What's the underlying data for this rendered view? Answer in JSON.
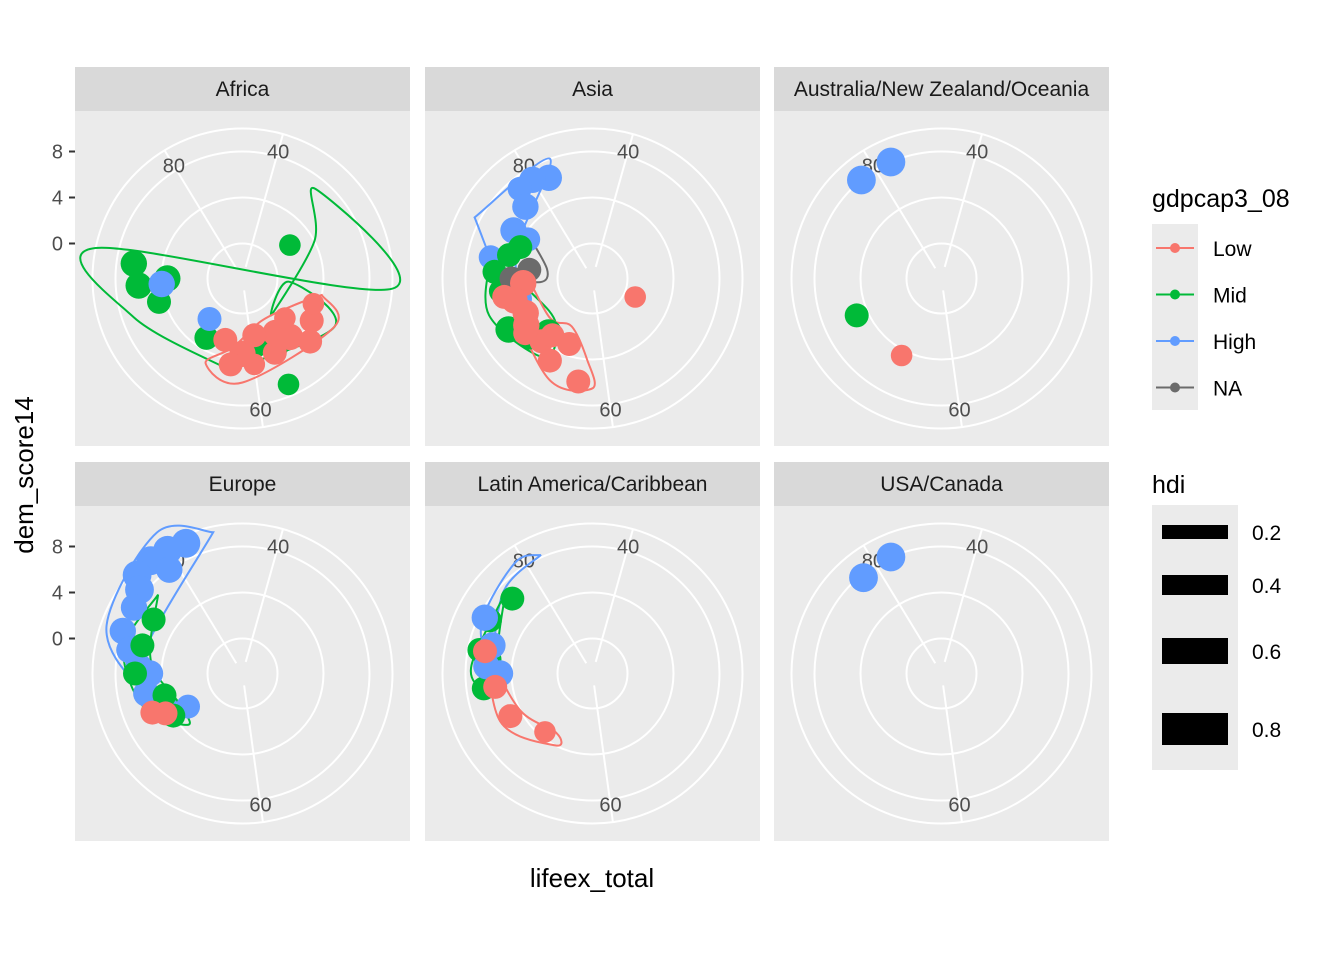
{
  "chart_data": {
    "type": "scatter",
    "coord": "polar",
    "xlabel": "lifeex_total",
    "ylabel": "dem_score14",
    "theta_ticks": [
      40,
      60,
      80
    ],
    "theta_domain": [
      38,
      84
    ],
    "r_ticks": [
      0,
      4,
      8
    ],
    "r_domain": [
      -2,
      10
    ],
    "colors": {
      "Low": "#F8766D",
      "Mid": "#00BA38",
      "High": "#619CFF",
      "NA": "#6b6b6b"
    },
    "legend_color": {
      "title": "gdpcap3_08",
      "items": [
        "Low",
        "Mid",
        "High",
        "NA"
      ]
    },
    "legend_size": {
      "title": "hdi",
      "items": [
        "0.2",
        "0.4",
        "0.6",
        "0.8"
      ]
    },
    "facets": [
      {
        "label": "Africa",
        "points": [
          {
            "x": 58.0,
            "y": 7.0,
            "g": "Mid",
            "s": 0.4
          },
          {
            "x": 57.5,
            "y": 3.5,
            "g": "Mid",
            "s": 0.5
          },
          {
            "x": 59.5,
            "y": 3.0,
            "g": "Mid",
            "s": 0.4
          },
          {
            "x": 65.0,
            "y": 3.0,
            "g": "Mid",
            "s": 0.5
          },
          {
            "x": 70.5,
            "y": 4.5,
            "g": "Mid",
            "s": 0.5
          },
          {
            "x": 72.0,
            "y": 6.0,
            "g": "Mid",
            "s": 0.6
          },
          {
            "x": 73.5,
            "y": 6.5,
            "g": "Mid",
            "s": 0.6
          },
          {
            "x": 72.5,
            "y": 3.5,
            "g": "Mid",
            "s": 0.6
          },
          {
            "x": 72.0,
            "y": 4.0,
            "g": "High",
            "s": 0.6
          },
          {
            "x": 66.0,
            "y": 1.5,
            "g": "High",
            "s": 0.5
          },
          {
            "x": 45.0,
            "y": 2.0,
            "g": "Mid",
            "s": 0.4
          },
          {
            "x": 55.0,
            "y": 5.0,
            "g": "Low",
            "s": 0.5
          },
          {
            "x": 58.0,
            "y": 4.0,
            "g": "Low",
            "s": 0.5
          },
          {
            "x": 60.0,
            "y": 4.5,
            "g": "Low",
            "s": 0.4
          },
          {
            "x": 53.5,
            "y": 4.0,
            "g": "Low",
            "s": 0.5
          },
          {
            "x": 57.0,
            "y": 2.5,
            "g": "Low",
            "s": 0.6
          },
          {
            "x": 61.0,
            "y": 3.5,
            "g": "Low",
            "s": 0.6
          },
          {
            "x": 62.0,
            "y": 4.5,
            "g": "Low",
            "s": 0.5
          },
          {
            "x": 56.0,
            "y": 3.5,
            "g": "Low",
            "s": 0.6
          },
          {
            "x": 63.0,
            "y": 2.5,
            "g": "Low",
            "s": 0.5
          },
          {
            "x": 59.5,
            "y": 2.0,
            "g": "Low",
            "s": 0.5
          },
          {
            "x": 52.0,
            "y": 3.5,
            "g": "Low",
            "s": 0.4
          },
          {
            "x": 55.0,
            "y": 2.0,
            "g": "Low",
            "s": 0.4
          }
        ],
        "contours": [
          {
            "g": "Mid",
            "pts": [
              [
                62,
                5
              ],
              [
                70,
                7
              ],
              [
                74,
                10
              ],
              [
                50,
                10
              ],
              [
                43,
                7
              ],
              [
                46,
                4
              ],
              [
                56,
                1
              ],
              [
                50,
                1
              ],
              [
                53,
                6
              ],
              [
                62,
                5
              ]
            ]
          },
          {
            "g": "Low",
            "pts": [
              [
                51,
                4
              ],
              [
                53,
                6
              ],
              [
                61,
                6
              ],
              [
                64,
                5
              ],
              [
                62,
                3
              ],
              [
                58,
                1
              ],
              [
                53,
                2
              ],
              [
                51,
                4
              ]
            ]
          }
        ]
      },
      {
        "label": "Asia",
        "points": [
          {
            "x": 81.0,
            "y": 6.5,
            "g": "High",
            "s": 0.6
          },
          {
            "x": 80.0,
            "y": 7.0,
            "g": "High",
            "s": 0.6
          },
          {
            "x": 79.0,
            "y": 7.0,
            "g": "High",
            "s": 0.5
          },
          {
            "x": 78.5,
            "y": 5.5,
            "g": "High",
            "s": 0.6
          },
          {
            "x": 76.5,
            "y": 5.0,
            "g": "High",
            "s": 0.6
          },
          {
            "x": 74.0,
            "y": 6.0,
            "g": "High",
            "s": 0.5
          },
          {
            "x": 70.5,
            "y": 3.5,
            "g": "High",
            "s": 0.5
          },
          {
            "x": 76.5,
            "y": 3.5,
            "g": "High",
            "s": 0.5
          },
          {
            "x": 75.5,
            "y": 3.8,
            "g": "Mid",
            "s": 0.5
          },
          {
            "x": 74.5,
            "y": 4.5,
            "g": "Mid",
            "s": 0.5
          },
          {
            "x": 73.0,
            "y": 5.5,
            "g": "Mid",
            "s": 0.5
          },
          {
            "x": 71.5,
            "y": 5.0,
            "g": "Mid",
            "s": 0.5
          },
          {
            "x": 68.5,
            "y": 5.5,
            "g": "Mid",
            "s": 0.6
          },
          {
            "x": 67.0,
            "y": 4.5,
            "g": "Mid",
            "s": 0.5
          },
          {
            "x": 66.0,
            "y": 3.0,
            "g": "Mid",
            "s": 0.6
          },
          {
            "x": 72.5,
            "y": 4.0,
            "g": "NA",
            "s": 0.5
          },
          {
            "x": 73.5,
            "y": 2.5,
            "g": "NA",
            "s": 0.5
          },
          {
            "x": 72.0,
            "y": 3.0,
            "g": "Low",
            "s": 0.6
          },
          {
            "x": 70.5,
            "y": 4.0,
            "g": "Low",
            "s": 0.6
          },
          {
            "x": 68.0,
            "y": 4.0,
            "g": "Low",
            "s": 0.6
          },
          {
            "x": 69.0,
            "y": 3.5,
            "g": "Low",
            "s": 0.6
          },
          {
            "x": 66.0,
            "y": 4.0,
            "g": "Low",
            "s": 0.5
          },
          {
            "x": 65.5,
            "y": 3.0,
            "g": "Low",
            "s": 0.5
          },
          {
            "x": 64.5,
            "y": 5.0,
            "g": "Low",
            "s": 0.5
          },
          {
            "x": 62.0,
            "y": 6.0,
            "g": "Low",
            "s": 0.5
          },
          {
            "x": 67.5,
            "y": 4.5,
            "g": "Low",
            "s": 0.5
          },
          {
            "x": 63.5,
            "y": 3.0,
            "g": "Low",
            "s": 0.5
          },
          {
            "x": 52.5,
            "y": 1.0,
            "g": "Low",
            "s": 0.4
          },
          {
            "x": 71.0,
            "y": 4.8,
            "g": "Low",
            "s": 0.5
          }
        ],
        "contours": [
          {
            "g": "High",
            "pts": [
              [
                76,
                8.5
              ],
              [
                81.5,
                8
              ],
              [
                75,
                4
              ],
              [
                69,
                3.5
              ],
              [
                70,
                4.5
              ],
              [
                76,
                8.5
              ]
            ]
          },
          {
            "g": "NA",
            "pts": [
              [
                77,
                4
              ],
              [
                74,
                1
              ],
              [
                72,
                1.5
              ],
              [
                73,
                4
              ],
              [
                77,
                4
              ]
            ]
          },
          {
            "g": "Mid",
            "pts": [
              [
                74,
                6
              ],
              [
                70,
                6.5
              ],
              [
                65,
                5
              ],
              [
                66,
                2
              ],
              [
                71,
                2.5
              ],
              [
                74,
                6
              ]
            ]
          },
          {
            "g": "Low",
            "pts": [
              [
                71,
                4.5
              ],
              [
                64,
                6.5
              ],
              [
                61,
                6.5
              ],
              [
                61.5,
                4
              ],
              [
                64,
                1.5
              ],
              [
                67,
                2
              ],
              [
                73,
                3
              ],
              [
                71,
                4.5
              ]
            ]
          }
        ]
      },
      {
        "label": "Australia/New Zealand/Oceania",
        "points": [
          {
            "x": 81.0,
            "y": 8.0,
            "g": "High",
            "s": 0.7
          },
          {
            "x": 79.0,
            "y": 8.0,
            "g": "High",
            "s": 0.7
          },
          {
            "x": 69.5,
            "y": 5.0,
            "g": "Mid",
            "s": 0.5
          },
          {
            "x": 64.5,
            "y": 4.5,
            "g": "Low",
            "s": 0.4
          }
        ],
        "contours": []
      },
      {
        "label": "Europe",
        "points": [
          {
            "x": 81.0,
            "y": 9.3,
            "g": "High",
            "s": 0.7
          },
          {
            "x": 80.0,
            "y": 9.5,
            "g": "High",
            "s": 0.7
          },
          {
            "x": 79.0,
            "y": 9.6,
            "g": "High",
            "s": 0.7
          },
          {
            "x": 78.0,
            "y": 9.5,
            "g": "High",
            "s": 0.7
          },
          {
            "x": 77.5,
            "y": 8.5,
            "g": "High",
            "s": 0.7
          },
          {
            "x": 79.5,
            "y": 8.0,
            "g": "High",
            "s": 0.6
          },
          {
            "x": 76.5,
            "y": 8.0,
            "g": "High",
            "s": 0.6
          },
          {
            "x": 75.0,
            "y": 8.0,
            "g": "High",
            "s": 0.6
          },
          {
            "x": 74.0,
            "y": 7.0,
            "g": "High",
            "s": 0.6
          },
          {
            "x": 73.0,
            "y": 6.0,
            "g": "High",
            "s": 0.6
          },
          {
            "x": 72.5,
            "y": 5.0,
            "g": "High",
            "s": 0.6
          },
          {
            "x": 71.0,
            "y": 5.5,
            "g": "High",
            "s": 0.6
          },
          {
            "x": 68.5,
            "y": 2.5,
            "g": "High",
            "s": 0.5
          },
          {
            "x": 74.5,
            "y": 6.0,
            "g": "Mid",
            "s": 0.5
          },
          {
            "x": 72.5,
            "y": 6.3,
            "g": "Mid",
            "s": 0.5
          },
          {
            "x": 76.5,
            "y": 6.0,
            "g": "Mid",
            "s": 0.5
          },
          {
            "x": 70.5,
            "y": 4.0,
            "g": "Mid",
            "s": 0.5
          },
          {
            "x": 68.5,
            "y": 4.0,
            "g": "Mid",
            "s": 0.5
          },
          {
            "x": 69.5,
            "y": 5.5,
            "g": "Low",
            "s": 0.5
          },
          {
            "x": 69.0,
            "y": 4.5,
            "g": "Low",
            "s": 0.5
          }
        ],
        "contours": [
          {
            "g": "High",
            "pts": [
              [
                82.5,
                9.5
              ],
              [
                80,
                11.3
              ],
              [
                75,
                9.5
              ],
              [
                71.5,
                6
              ],
              [
                69.5,
                3.2
              ],
              [
                73,
                6
              ],
              [
                82.5,
                9.5
              ]
            ]
          },
          {
            "g": "Mid",
            "pts": [
              [
                78,
                7
              ],
              [
                74,
                7.5
              ],
              [
                70,
                6
              ],
              [
                67,
                3.5
              ],
              [
                69,
                3
              ],
              [
                73.5,
                5
              ],
              [
                78,
                7
              ]
            ]
          }
        ]
      },
      {
        "label": "Latin America/Caribbean",
        "points": [
          {
            "x": 78.0,
            "y": 6.5,
            "g": "Mid",
            "s": 0.5
          },
          {
            "x": 76.0,
            "y": 7.0,
            "g": "Mid",
            "s": 0.5
          },
          {
            "x": 74.0,
            "y": 7.0,
            "g": "Mid",
            "s": 0.5
          },
          {
            "x": 73.5,
            "y": 6.0,
            "g": "Mid",
            "s": 0.5
          },
          {
            "x": 71.5,
            "y": 6.5,
            "g": "Mid",
            "s": 0.5
          },
          {
            "x": 76.0,
            "y": 7.5,
            "g": "High",
            "s": 0.6
          },
          {
            "x": 74.5,
            "y": 6.0,
            "g": "High",
            "s": 0.6
          },
          {
            "x": 73.0,
            "y": 6.2,
            "g": "High",
            "s": 0.6
          },
          {
            "x": 72.5,
            "y": 5.0,
            "g": "High",
            "s": 0.6
          },
          {
            "x": 74.0,
            "y": 6.5,
            "g": "Low",
            "s": 0.5
          },
          {
            "x": 71.5,
            "y": 5.5,
            "g": "Low",
            "s": 0.5
          },
          {
            "x": 69.0,
            "y": 5.0,
            "g": "Low",
            "s": 0.5
          },
          {
            "x": 66.0,
            "y": 3.5,
            "g": "Low",
            "s": 0.4
          }
        ],
        "contours": [
          {
            "g": "High",
            "pts": [
              [
                81,
                8.2
              ],
              [
                79.5,
                8.7
              ],
              [
                75.5,
                7.5
              ],
              [
                72,
                5.5
              ],
              [
                73.5,
                5.7
              ],
              [
                78,
                7.5
              ],
              [
                81,
                8.2
              ]
            ]
          },
          {
            "g": "Mid",
            "pts": [
              [
                78,
                7.3
              ],
              [
                73,
                7.5
              ],
              [
                71.5,
                6.5
              ],
              [
                73,
                5.5
              ],
              [
                76,
                6
              ],
              [
                78,
                7.3
              ]
            ]
          },
          {
            "g": "Low",
            "pts": [
              [
                75,
                6.8
              ],
              [
                69,
                6
              ],
              [
                64.5,
                4
              ],
              [
                65,
                3
              ],
              [
                69,
                4
              ],
              [
                73.5,
                5.8
              ],
              [
                75,
                6.8
              ]
            ]
          }
        ]
      },
      {
        "label": "USA/Canada",
        "points": [
          {
            "x": 81.0,
            "y": 8.0,
            "g": "High",
            "s": 0.7
          },
          {
            "x": 79.0,
            "y": 7.7,
            "g": "High",
            "s": 0.7
          }
        ],
        "contours": []
      }
    ]
  }
}
